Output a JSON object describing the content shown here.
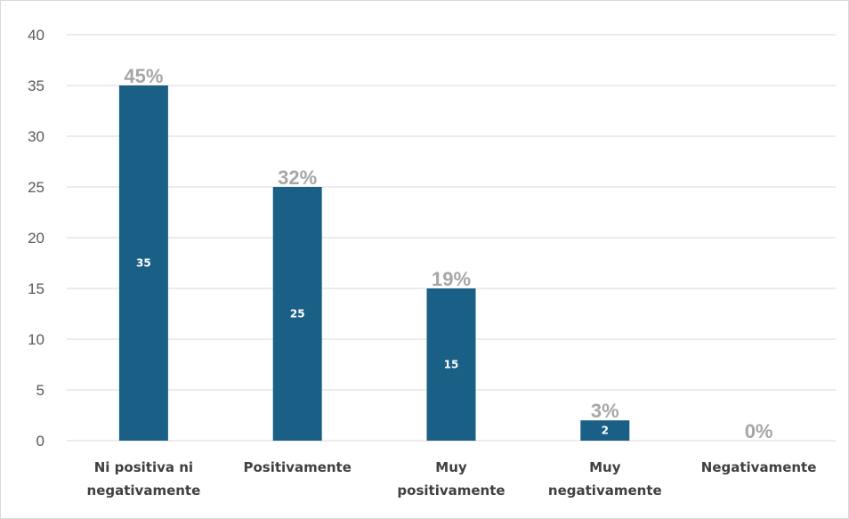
{
  "chart_data": {
    "type": "bar",
    "categories": [
      [
        "Ni positiva ni",
        "negativamente"
      ],
      [
        "Positivamente"
      ],
      [
        "Muy",
        "positivamente"
      ],
      [
        "Muy",
        "negativamente"
      ],
      [
        "Negativamente"
      ]
    ],
    "values": [
      35,
      25,
      15,
      2,
      0
    ],
    "value_labels": [
      "35",
      "25",
      "15",
      "2",
      ""
    ],
    "percent_labels": [
      "45%",
      "32%",
      "19%",
      "3%",
      "0%"
    ],
    "y_ticks": [
      "0",
      "5",
      "10",
      "15",
      "20",
      "25",
      "30",
      "35",
      "40"
    ],
    "ylim": [
      0,
      40
    ],
    "grid": true,
    "legend": "none",
    "colors": {
      "bar": "#1a5f86",
      "grid": "#d9d9d9",
      "percent_label": "#a6a6a6",
      "value_label": "#ffffff"
    }
  }
}
